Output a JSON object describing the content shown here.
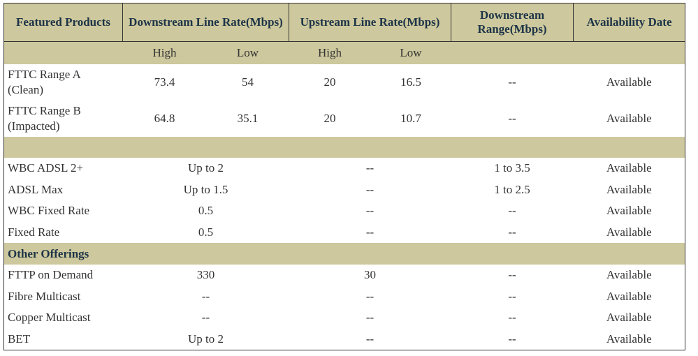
{
  "header": {
    "columns": [
      "Featured Products",
      "Downstream Line Rate(Mbps)",
      "Upstream Line Rate(Mbps)",
      "Downstream Range(Mbps)",
      "Availability Date"
    ],
    "subcolumns": [
      "High",
      "Low",
      "High",
      "Low"
    ]
  },
  "table": {
    "sections": [
      {
        "rows": [
          [
            "FTTC Range A (Clean)",
            "73.4",
            "54",
            "20",
            "16.5",
            "--",
            "Available"
          ],
          [
            "FTTC Range B (Impacted)",
            "64.8",
            "35.1",
            "20",
            "10.7",
            "--",
            "Available"
          ]
        ]
      },
      {
        "rows": [
          [
            "WBC ADSL 2+",
            "Up to 2",
            "--",
            "1 to 3.5",
            "Available"
          ],
          [
            "ADSL Max",
            "Up to 1.5",
            "--",
            "1 to 2.5",
            "Available"
          ],
          [
            "WBC Fixed Rate",
            "0.5",
            "--",
            "--",
            "Available"
          ],
          [
            "Fixed Rate",
            "0.5",
            "--",
            "--",
            "Available"
          ]
        ]
      },
      {
        "title": "Other Offerings",
        "rows": [
          [
            "FTTP on Demand",
            "330",
            "30",
            "--",
            "Available"
          ],
          [
            "Fibre Multicast",
            "--",
            "--",
            "--",
            "Available"
          ],
          [
            "Copper Multicast",
            "--",
            "--",
            "--",
            "Available"
          ],
          [
            "BET",
            "Up to 2",
            "--",
            "--",
            "Available"
          ]
        ]
      }
    ]
  }
}
